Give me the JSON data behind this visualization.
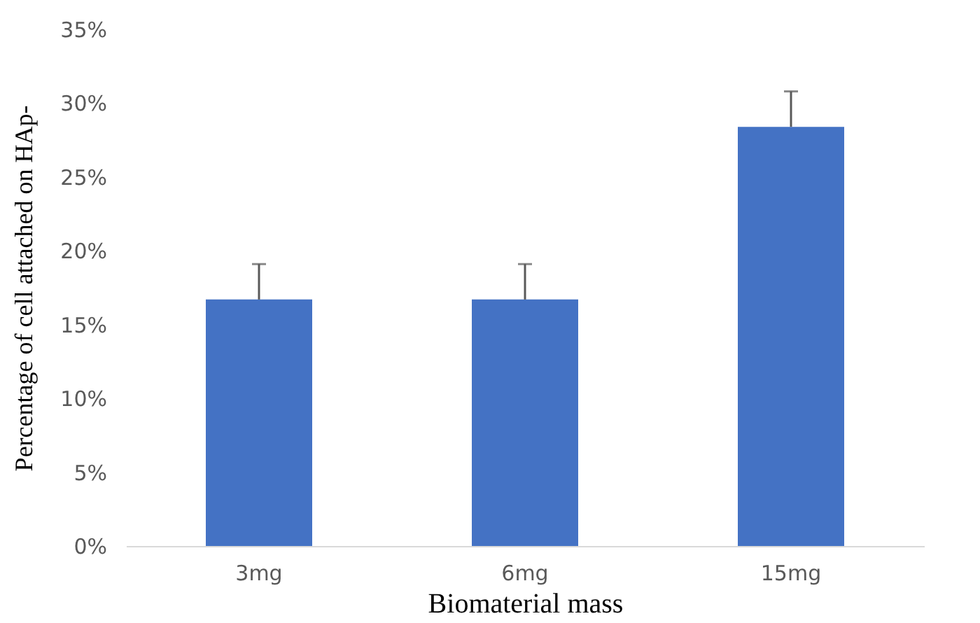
{
  "chart_data": {
    "type": "bar",
    "xlabel": "Biomaterial mass",
    "ylabel": "Percentage of cell attached on HAp-",
    "categories": [
      "3mg",
      "6mg",
      "15mg"
    ],
    "values": [
      16.7,
      16.7,
      28.4
    ],
    "errors": [
      [
        16.7,
        19.1
      ],
      [
        16.7,
        19.1
      ],
      [
        28.4,
        30.8
      ]
    ],
    "color": "#4472c4",
    "ylim": [
      0,
      35
    ],
    "yticks": [
      {
        "value": 0,
        "label": "0%"
      },
      {
        "value": 5,
        "label": "5%"
      },
      {
        "value": 10,
        "label": "10%"
      },
      {
        "value": 15,
        "label": "15%"
      },
      {
        "value": 20,
        "label": "20%"
      },
      {
        "value": 25,
        "label": "25%"
      },
      {
        "value": 30,
        "label": "30%"
      },
      {
        "value": 35,
        "label": "35%"
      }
    ],
    "grid": false
  }
}
